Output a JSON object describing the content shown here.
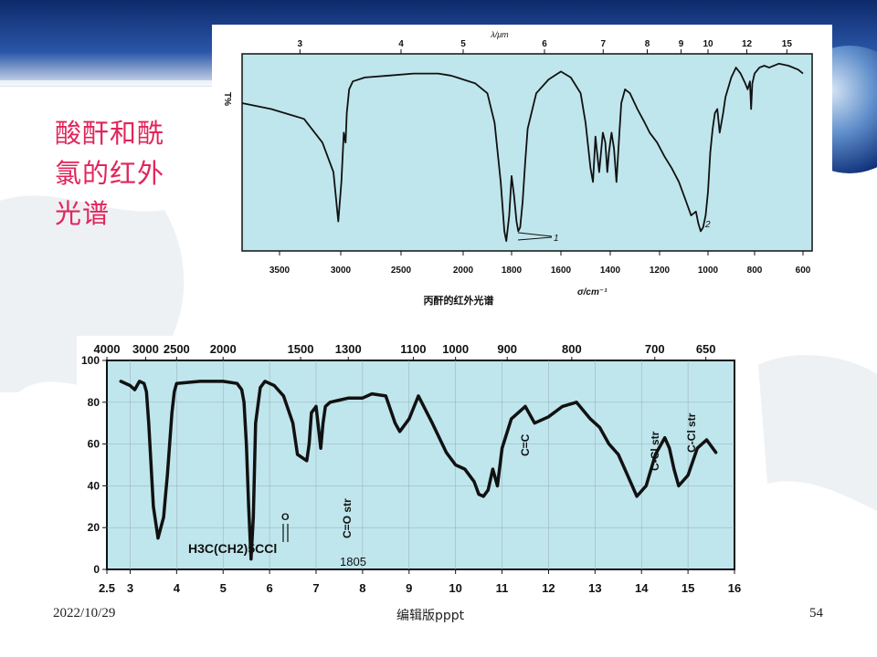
{
  "slide": {
    "title": "酸酐和酰氯的红外光谱",
    "footer_date": "2022/10/29",
    "footer_center": "编辑版pppt",
    "page_number": "54"
  },
  "colors": {
    "title": "#e0265c",
    "plot_bg": "#bfe6ec",
    "curve": "#111111",
    "banner": "#1e3f8a"
  },
  "chart_data": [
    {
      "type": "line",
      "title": "",
      "caption": "丙酐的红外光谱",
      "ylabel": "T%",
      "top_axis_label": "λ/μm",
      "xlabel": "σ/cm⁻¹",
      "x_ticks": [
        "3500",
        "3000",
        "2500",
        "2000",
        "1800",
        "1600",
        "1400",
        "1200",
        "1000",
        "800",
        "600"
      ],
      "top_ticks": [
        "3",
        "4",
        "5",
        "6",
        "7",
        "8",
        "9",
        "10",
        "12",
        "15"
      ],
      "annotations": [
        "1",
        "2"
      ],
      "series": [
        {
          "x": [
            3950,
            3600,
            3300,
            3150,
            3060,
            3020,
            2995,
            2975,
            2960,
            2950,
            2930,
            2900,
            2800,
            2600,
            2400,
            2200,
            2100,
            2050,
            2000,
            1950,
            1900,
            1870,
            1845,
            1830,
            1822,
            1810,
            1800,
            1790,
            1780,
            1773,
            1765,
            1755,
            1745,
            1735,
            1700,
            1650,
            1600,
            1560,
            1520,
            1500,
            1480,
            1470,
            1460,
            1455,
            1445,
            1430,
            1420,
            1412,
            1405,
            1395,
            1385,
            1375,
            1362,
            1355,
            1340,
            1320,
            1290,
            1260,
            1240,
            1210,
            1180,
            1150,
            1120,
            1090,
            1070,
            1050,
            1040,
            1030,
            1020,
            1010,
            1000,
            990,
            980,
            970,
            960,
            950,
            935,
            925,
            900,
            880,
            860,
            840,
            830,
            820,
            815,
            810,
            800,
            780,
            760,
            740,
            700,
            660,
            620,
            600
          ],
          "values": [
            75,
            72,
            67,
            55,
            40,
            15,
            35,
            60,
            55,
            70,
            82,
            86,
            88,
            89,
            90,
            90,
            89,
            88,
            87,
            85,
            80,
            65,
            35,
            10,
            5,
            18,
            38,
            28,
            15,
            10,
            12,
            25,
            45,
            62,
            80,
            87,
            91,
            88,
            80,
            65,
            42,
            35,
            58,
            52,
            40,
            60,
            55,
            40,
            50,
            60,
            52,
            35,
            62,
            75,
            82,
            80,
            72,
            65,
            60,
            55,
            48,
            42,
            35,
            25,
            18,
            20,
            14,
            10,
            12,
            18,
            30,
            50,
            62,
            70,
            72,
            60,
            70,
            78,
            88,
            93,
            90,
            85,
            82,
            86,
            72,
            85,
            90,
            93,
            94,
            93,
            95,
            94,
            92,
            90
          ]
        }
      ]
    },
    {
      "type": "line",
      "title": "",
      "ylim": [
        0,
        100
      ],
      "xlim": [
        2.5,
        16
      ],
      "y_ticks": [
        "100",
        "80",
        "60",
        "40",
        "20",
        "0"
      ],
      "x_ticks": [
        "2.5",
        "3",
        "4",
        "5",
        "6",
        "7",
        "8",
        "9",
        "10",
        "11",
        "12",
        "13",
        "14",
        "15",
        "16"
      ],
      "top_ticks": [
        "4000",
        "3000",
        "2500",
        "2000",
        "1500",
        "1300",
        "1100",
        "1000",
        "900",
        "800",
        "700",
        "650"
      ],
      "annotations": [
        "C=O str",
        "C=C",
        "C-Cl str",
        "C-Cl str",
        "1805",
        "H3C(CH2)5CCl",
        "O"
      ],
      "series": [
        {
          "x": [
            2.8,
            3.0,
            3.1,
            3.2,
            3.3,
            3.35,
            3.4,
            3.5,
            3.6,
            3.72,
            3.76,
            3.8,
            3.85,
            3.9,
            3.95,
            4.0,
            4.5,
            5.0,
            5.3,
            5.4,
            5.45,
            5.5,
            5.55,
            5.6,
            5.65,
            5.7,
            5.8,
            5.9,
            6.0,
            6.1,
            6.3,
            6.5,
            6.6,
            6.8,
            6.85,
            6.9,
            7.0,
            7.1,
            7.15,
            7.2,
            7.3,
            7.5,
            7.7,
            8.0,
            8.2,
            8.5,
            8.7,
            8.8,
            9.0,
            9.2,
            9.5,
            9.8,
            10.0,
            10.2,
            10.4,
            10.5,
            10.6,
            10.7,
            10.8,
            10.9,
            11.0,
            11.2,
            11.5,
            11.7,
            12.0,
            12.3,
            12.6,
            12.9,
            13.1,
            13.3,
            13.5,
            13.7,
            13.9,
            14.1,
            14.3,
            14.5,
            14.6,
            14.7,
            14.8,
            15.0,
            15.2,
            15.4,
            15.6
          ],
          "values": [
            90,
            88,
            86,
            90,
            89,
            85,
            70,
            30,
            15,
            25,
            35,
            45,
            60,
            75,
            85,
            89,
            90,
            90,
            89,
            86,
            80,
            60,
            30,
            5,
            25,
            70,
            87,
            90,
            89,
            88,
            83,
            70,
            55,
            52,
            60,
            75,
            78,
            58,
            70,
            78,
            80,
            81,
            82,
            82,
            84,
            83,
            70,
            66,
            72,
            83,
            70,
            56,
            50,
            48,
            42,
            36,
            35,
            38,
            48,
            40,
            58,
            72,
            78,
            70,
            73,
            78,
            80,
            72,
            68,
            60,
            55,
            45,
            35,
            40,
            55,
            63,
            58,
            48,
            40,
            45,
            58,
            62,
            56
          ]
        }
      ]
    }
  ]
}
